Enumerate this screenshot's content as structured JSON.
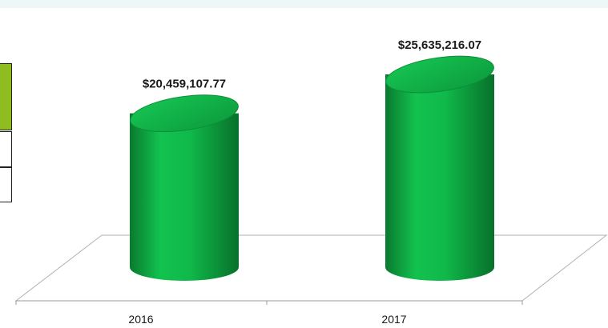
{
  "chart_data": {
    "type": "bar",
    "bar_shape": "cylinder",
    "categories": [
      "2016",
      "2017"
    ],
    "values": [
      20459107.77,
      25635216.07
    ],
    "data_labels": [
      "$20,459,107.77",
      "$25,635,216.07"
    ],
    "title": "",
    "xlabel": "",
    "ylabel": "",
    "grid": false,
    "colors": {
      "bar": "#10b94a",
      "bar_dark": "#0a7a2f",
      "bar_top": "#0fa843",
      "legend_accent": "#8fbc1f"
    }
  }
}
